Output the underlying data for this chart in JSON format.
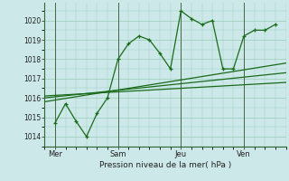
{
  "bg_color": "#cce8e8",
  "grid_color": "#99ccbb",
  "line_color": "#1a6b1a",
  "xlabel": "Pression niveau de la mer( hPa )",
  "ylim": [
    1013.5,
    1020.9
  ],
  "yticks": [
    1014,
    1015,
    1016,
    1017,
    1018,
    1019,
    1020
  ],
  "day_labels": [
    "Mer",
    "Sam",
    "Jeu",
    "Ven"
  ],
  "day_positions": [
    0.5,
    3.5,
    6.5,
    9.5
  ],
  "vline_positions": [
    0.5,
    3.5,
    6.5,
    9.5
  ],
  "line1_x": [
    0.5,
    1.0,
    1.5,
    2.0,
    2.5,
    3.0,
    3.5,
    4.0,
    4.5,
    5.0,
    5.5,
    6.0,
    6.5,
    7.0,
    7.5,
    8.0,
    8.5,
    9.0,
    9.5,
    10.0,
    10.5,
    11.0
  ],
  "line1_y": [
    1014.7,
    1015.7,
    1014.8,
    1014.0,
    1015.2,
    1016.0,
    1018.0,
    1018.8,
    1019.2,
    1019.0,
    1018.3,
    1017.5,
    1020.5,
    1020.1,
    1019.8,
    1020.0,
    1017.5,
    1017.5,
    1019.2,
    1019.5,
    1019.5,
    1019.8
  ],
  "line2_x": [
    0.0,
    11.5
  ],
  "line2_y": [
    1015.8,
    1017.8
  ],
  "line3_x": [
    0.0,
    11.5
  ],
  "line3_y": [
    1016.0,
    1017.3
  ],
  "line4_x": [
    0.0,
    11.5
  ],
  "line4_y": [
    1016.1,
    1016.8
  ],
  "xmin": 0.0,
  "xmax": 11.5
}
